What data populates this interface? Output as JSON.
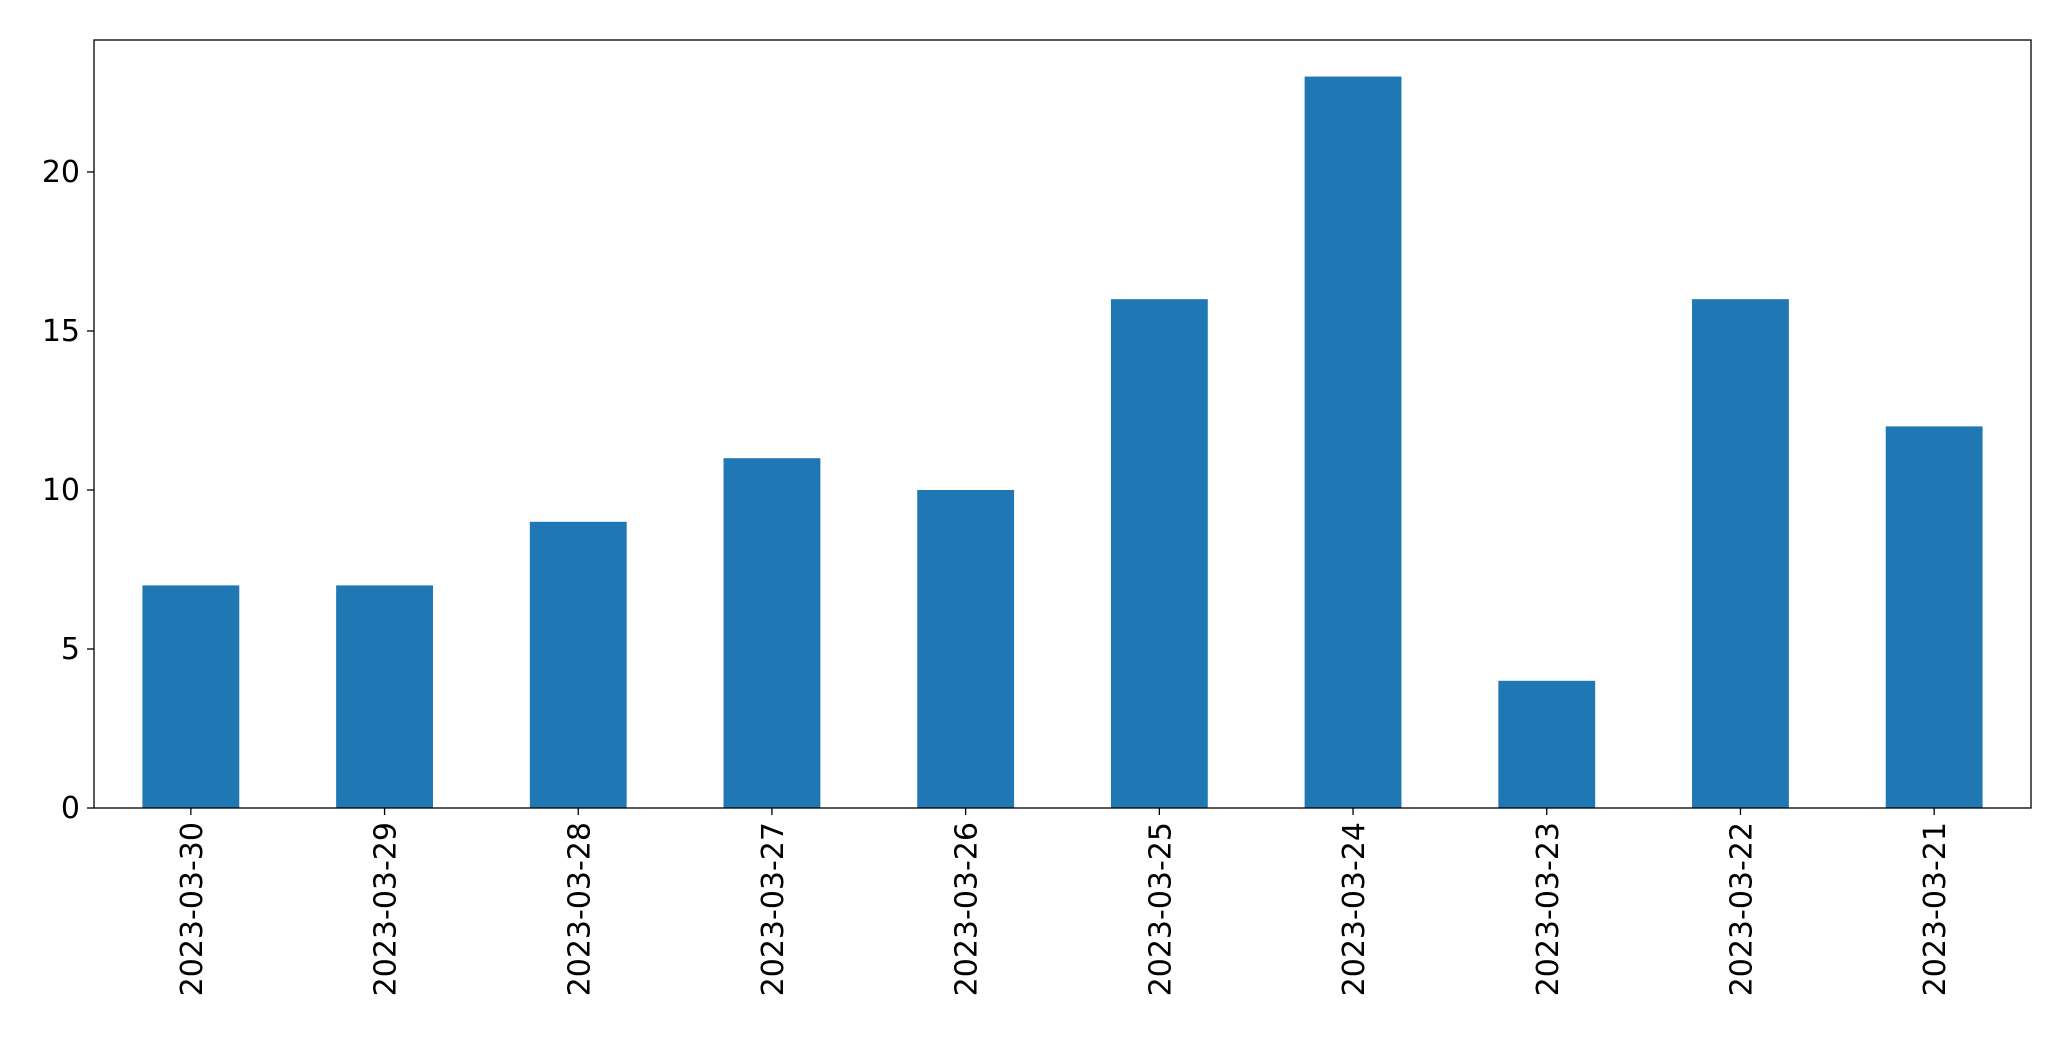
{
  "chart_data": {
    "type": "bar",
    "categories": [
      "2023-03-30",
      "2023-03-29",
      "2023-03-28",
      "2023-03-27",
      "2023-03-26",
      "2023-03-25",
      "2023-03-24",
      "2023-03-23",
      "2023-03-22",
      "2023-03-21"
    ],
    "values": [
      7,
      7,
      9,
      11,
      10,
      16,
      23,
      4,
      16,
      12
    ],
    "color": "#1f77b4",
    "ylim": [
      0,
      24.15
    ],
    "yticks": [
      0,
      5,
      10,
      15,
      20
    ],
    "grid": false
  }
}
